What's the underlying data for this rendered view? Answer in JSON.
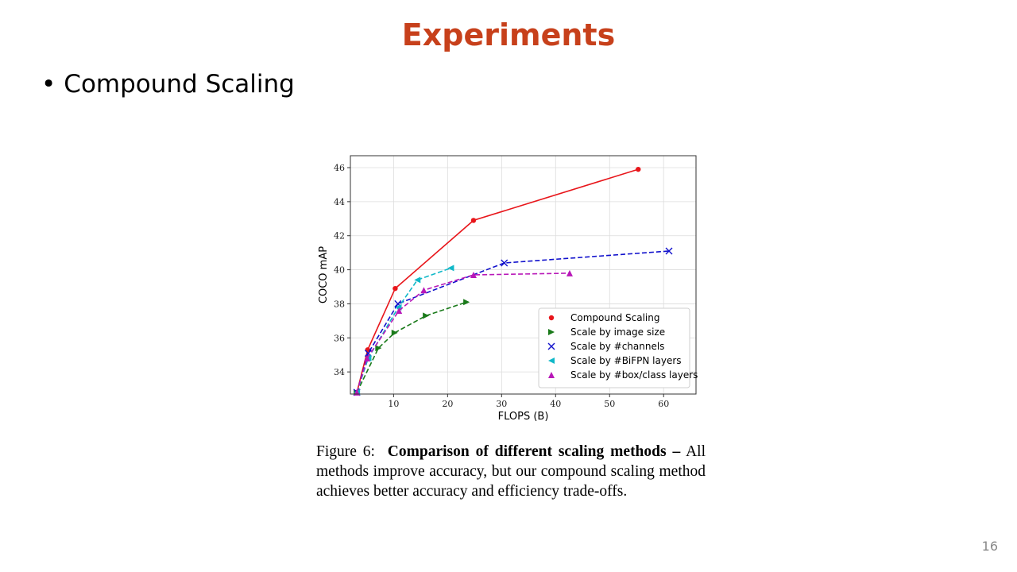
{
  "slide": {
    "title": "Experiments",
    "title_color": "#c7401b",
    "bullet": "Compound Scaling",
    "page_number": "16"
  },
  "caption": {
    "label": "Figure 6:",
    "bold": "Comparison of different scaling methods –",
    "text": "All methods improve accuracy, but our compound scaling method achieves better accuracy and efficiency trade-offs."
  },
  "chart_data": {
    "type": "line",
    "title": "",
    "xlabel": "FLOPS (B)",
    "ylabel": "COCO mAP",
    "xlim": [
      2,
      66
    ],
    "ylim": [
      32.7,
      46.7
    ],
    "xticks": [
      10,
      20,
      30,
      40,
      50,
      60
    ],
    "yticks": [
      34,
      36,
      38,
      40,
      42,
      44,
      46
    ],
    "grid": true,
    "legend_position": "lower-right",
    "series": [
      {
        "name": "Compound Scaling",
        "color": "#e8161b",
        "marker": "circle",
        "dashed": false,
        "x": [
          3.2,
          5.2,
          10.3,
          24.8,
          55.3
        ],
        "y": [
          32.8,
          35.3,
          38.9,
          42.9,
          45.9
        ]
      },
      {
        "name": "Scale by image size",
        "color": "#1a7a1a",
        "marker": "triangle-right",
        "dashed": true,
        "x": [
          3.2,
          7.2,
          10.2,
          16.0,
          23.5
        ],
        "y": [
          32.8,
          35.4,
          36.3,
          37.3,
          38.1
        ]
      },
      {
        "name": "Scale by #channels",
        "color": "#1111cc",
        "marker": "x",
        "dashed": true,
        "x": [
          3.2,
          5.3,
          10.8,
          30.5,
          61.0
        ],
        "y": [
          32.8,
          35.1,
          38.0,
          40.4,
          41.1
        ]
      },
      {
        "name": "Scale by #BiFPN layers",
        "color": "#10b8c8",
        "marker": "triangle-left",
        "dashed": true,
        "x": [
          3.2,
          5.3,
          10.9,
          14.4,
          20.6
        ],
        "y": [
          32.8,
          34.8,
          37.8,
          39.4,
          40.1
        ]
      },
      {
        "name": "Scale by #box/class layers",
        "color": "#b818b8",
        "marker": "triangle-up",
        "dashed": true,
        "x": [
          3.2,
          5.1,
          11.0,
          15.6,
          24.8,
          42.6
        ],
        "y": [
          32.8,
          34.8,
          37.6,
          38.8,
          39.7,
          39.8
        ]
      }
    ]
  }
}
